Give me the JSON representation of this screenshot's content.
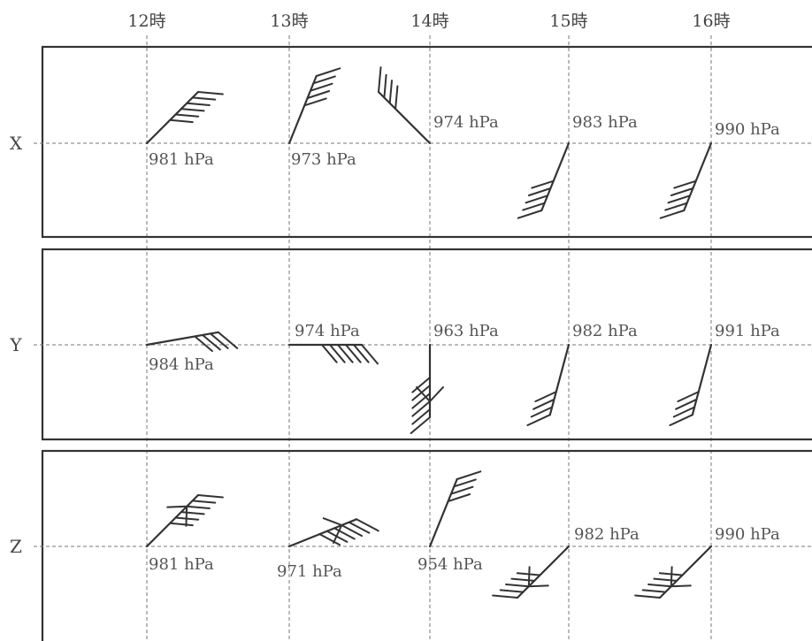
{
  "hours": [
    "12時",
    "13時",
    "14時",
    "15時",
    "16時"
  ],
  "rows": [
    {
      "label": "X",
      "observations": [
        {
          "pressure": "981 hPa",
          "wind_toward_deg": 45,
          "barbs": 6,
          "cross": false
        },
        {
          "pressure": "973 hPa",
          "wind_toward_deg": 22,
          "barbs": 5,
          "cross": false
        },
        {
          "pressure": "974 hPa",
          "wind_toward_deg": -45,
          "barbs": 4,
          "cross": false
        },
        {
          "pressure": "983 hPa",
          "wind_toward_deg": 202,
          "barbs": 5,
          "cross": false
        },
        {
          "pressure": "990 hPa",
          "wind_toward_deg": 202,
          "barbs": 5,
          "cross": false
        }
      ]
    },
    {
      "label": "Y",
      "observations": [
        {
          "pressure": "984 hPa",
          "wind_toward_deg": 80,
          "barbs": 4,
          "cross": false
        },
        {
          "pressure": "974 hPa",
          "wind_toward_deg": 90,
          "barbs": 6,
          "cross": false
        },
        {
          "pressure": "963 hPa",
          "wind_toward_deg": 180,
          "barbs": 6,
          "cross": true
        },
        {
          "pressure": "982 hPa",
          "wind_toward_deg": 195,
          "barbs": 4,
          "cross": false
        },
        {
          "pressure": "991 hPa",
          "wind_toward_deg": 195,
          "barbs": 4,
          "cross": false
        }
      ]
    },
    {
      "label": "Z",
      "observations": [
        {
          "pressure": "981 hPa",
          "wind_toward_deg": 45,
          "barbs": 6,
          "cross": true
        },
        {
          "pressure": "971 hPa",
          "wind_toward_deg": 68,
          "barbs": 6,
          "cross": true
        },
        {
          "pressure": "954 hPa",
          "wind_toward_deg": 22,
          "barbs": 4,
          "cross": false
        },
        {
          "pressure": "982 hPa",
          "wind_toward_deg": 225,
          "barbs": 5,
          "cross": true
        },
        {
          "pressure": "990 hPa",
          "wind_toward_deg": 225,
          "barbs": 5,
          "cross": true
        }
      ]
    }
  ]
}
